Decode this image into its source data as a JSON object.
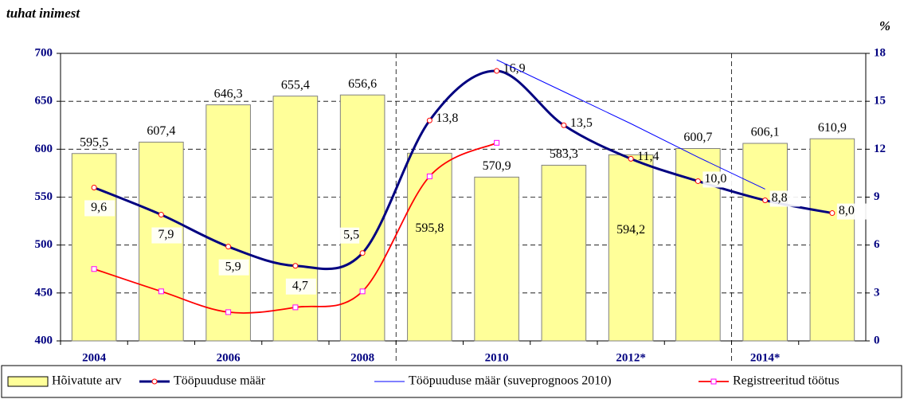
{
  "chart_data": {
    "type": "bar",
    "y_label": "tuhat inimest",
    "y2_label": "%",
    "categories": [
      "2004",
      null,
      "2006",
      null,
      "2008",
      null,
      "2010",
      null,
      "2012*",
      null,
      "2014*",
      null
    ],
    "ylim": [
      400,
      700
    ],
    "yticks": [
      400,
      450,
      500,
      550,
      600,
      650,
      700
    ],
    "y2lim": [
      0,
      18
    ],
    "y2ticks": [
      0,
      3,
      6,
      9,
      12,
      15,
      18
    ],
    "grid": true,
    "series": [
      {
        "name": "Hõivatute arv",
        "type": "bar",
        "color": "#ffff99",
        "values": [
          595.5,
          607.4,
          646.3,
          655.4,
          656.6,
          595.8,
          570.9,
          583.3,
          594.2,
          600.7,
          606.1,
          610.9
        ],
        "value_labels": [
          "595,5",
          "607,4",
          "646,3",
          "655,4",
          "656,6",
          "595,8",
          "570,9",
          "583,3",
          "594,2",
          "600,7",
          "606,1",
          "610,9"
        ]
      },
      {
        "name": "Tööpuuduse määr",
        "type": "line",
        "axis": "y2",
        "color": "#000080",
        "values": [
          9.6,
          7.9,
          5.9,
          4.7,
          5.5,
          13.8,
          16.9,
          13.5,
          11.4,
          10.0,
          8.8,
          8.0
        ],
        "value_labels": [
          "9,6",
          "7,9",
          "5,9",
          "4,7",
          "5,5",
          "13,8",
          "16,9",
          "13,5",
          "11,4",
          "10,0",
          "8,8",
          "8,0"
        ]
      },
      {
        "name": "Tööpuuduse määr (suveprognoos 2010)",
        "type": "line",
        "axis": "y2",
        "color": "#0000ff",
        "values": [
          null,
          null,
          null,
          null,
          null,
          null,
          17.6,
          15.6,
          13.6,
          11.5,
          9.5,
          null
        ]
      },
      {
        "name": "Registreeritud töötus",
        "type": "line",
        "axis": "y2",
        "color": "#ff0000",
        "values": [
          4.5,
          3.1,
          1.8,
          2.1,
          3.1,
          10.3,
          12.4,
          null,
          null,
          null,
          null,
          null
        ]
      }
    ]
  }
}
